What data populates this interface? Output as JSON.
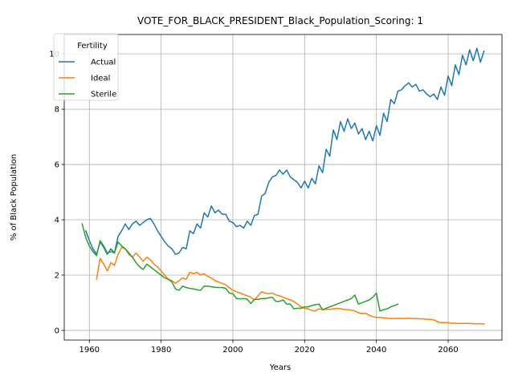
{
  "chart_data": {
    "type": "line",
    "title": "VOTE_FOR_BLACK_PRESIDENT_Black_Population_Scoring: 1",
    "xlabel": "Years",
    "ylabel": "% of Black Population",
    "xlim": [
      1953,
      2075
    ],
    "ylim": [
      -0.35,
      10.7
    ],
    "x_ticks": [
      1960,
      1980,
      2000,
      2020,
      2040,
      2060
    ],
    "y_ticks": [
      0,
      2,
      4,
      6,
      8,
      10
    ],
    "grid": true,
    "legend": {
      "title": "Fertility",
      "placement": "top-left"
    },
    "series": [
      {
        "name": "Actual",
        "color": "#1f77b4",
        "x": [
          1958,
          1959,
          1960,
          1961,
          1962,
          1963,
          1964,
          1965,
          1966,
          1967,
          1968,
          1969,
          1970,
          1971,
          1972,
          1973,
          1974,
          1975,
          1976,
          1977,
          1978,
          1979,
          1980,
          1981,
          1982,
          1983,
          1984,
          1985,
          1986,
          1987,
          1988,
          1989,
          1990,
          1991,
          1992,
          1993,
          1994,
          1995,
          1996,
          1997,
          1998,
          1999,
          2000,
          2001,
          2002,
          2003,
          2004,
          2005,
          2006,
          2007,
          2008,
          2009,
          2010,
          2011,
          2012,
          2013,
          2014,
          2015,
          2016,
          2017,
          2018,
          2019,
          2020,
          2021,
          2022,
          2023,
          2024,
          2025,
          2026,
          2027,
          2028,
          2029,
          2030,
          2031,
          2032,
          2033,
          2034,
          2035,
          2036,
          2037,
          2038,
          2039,
          2040,
          2041,
          2042,
          2043,
          2044,
          2045,
          2046,
          2047,
          2048,
          2049,
          2050,
          2051,
          2052,
          2053,
          2054,
          2055,
          2056,
          2057,
          2058,
          2059,
          2060,
          2061,
          2062,
          2063,
          2064,
          2065,
          2066,
          2067,
          2068,
          2069,
          2070
        ],
        "y": [
          null,
          3.6,
          3.25,
          2.95,
          2.75,
          3.2,
          3.0,
          2.75,
          2.95,
          2.8,
          3.4,
          3.6,
          3.85,
          3.65,
          3.85,
          3.95,
          3.8,
          3.9,
          4.0,
          4.05,
          3.85,
          3.6,
          3.4,
          3.2,
          3.05,
          2.95,
          2.75,
          2.8,
          3.0,
          2.95,
          3.6,
          3.5,
          3.85,
          3.7,
          4.25,
          4.1,
          4.5,
          4.25,
          4.35,
          4.2,
          4.2,
          3.95,
          3.9,
          3.75,
          3.8,
          3.7,
          3.95,
          3.8,
          4.15,
          4.2,
          4.85,
          4.95,
          5.35,
          5.55,
          5.6,
          5.8,
          5.65,
          5.8,
          5.55,
          5.45,
          5.35,
          5.15,
          5.4,
          5.15,
          5.5,
          5.3,
          5.95,
          5.7,
          6.55,
          6.3,
          7.25,
          6.9,
          7.55,
          7.2,
          7.65,
          7.3,
          7.5,
          7.1,
          7.3,
          6.9,
          7.2,
          6.85,
          7.4,
          7.05,
          7.85,
          7.55,
          8.35,
          8.2,
          8.65,
          8.7,
          8.85,
          8.95,
          8.8,
          8.9,
          8.65,
          8.7,
          8.55,
          8.45,
          8.55,
          8.35,
          8.8,
          8.5,
          9.2,
          8.85,
          9.6,
          9.25,
          9.95,
          9.6,
          10.15,
          9.75,
          10.2,
          9.7,
          10.1
        ]
      },
      {
        "name": "Ideal",
        "color": "#ff7f0e",
        "x": [
          1962,
          1963,
          1964,
          1965,
          1966,
          1967,
          1968,
          1969,
          1970,
          1971,
          1972,
          1973,
          1974,
          1975,
          1976,
          1977,
          1978,
          1979,
          1980,
          1981,
          1982,
          1983,
          1984,
          1985,
          1986,
          1987,
          1988,
          1989,
          1990,
          1991,
          1992,
          1993,
          1994,
          1995,
          1996,
          1997,
          1998,
          1999,
          2000,
          2001,
          2002,
          2003,
          2004,
          2005,
          2006,
          2007,
          2008,
          2009,
          2010,
          2011,
          2012,
          2013,
          2014,
          2015,
          2016,
          2017,
          2018,
          2019,
          2020,
          2021,
          2022,
          2023,
          2024,
          2025,
          2026,
          2027,
          2028,
          2029,
          2030,
          2031,
          2032,
          2033,
          2034,
          2035,
          2036,
          2037,
          2038,
          2039,
          2040,
          2041,
          2042,
          2043,
          2044,
          2045,
          2046,
          2047,
          2048,
          2049,
          2050,
          2051,
          2052,
          2053,
          2054,
          2055,
          2056,
          2057,
          2058,
          2059,
          2060,
          2061,
          2062,
          2063,
          2064,
          2065,
          2066,
          2067,
          2068,
          2069,
          2070
        ],
        "y": [
          1.85,
          2.6,
          2.4,
          2.15,
          2.45,
          2.35,
          2.75,
          3.0,
          2.95,
          2.75,
          2.65,
          2.8,
          2.65,
          2.5,
          2.65,
          2.55,
          2.4,
          2.3,
          2.15,
          2.0,
          1.85,
          1.8,
          1.7,
          1.8,
          1.9,
          1.85,
          2.1,
          2.05,
          2.1,
          2.0,
          2.05,
          1.95,
          1.9,
          1.8,
          1.75,
          1.7,
          1.65,
          1.55,
          1.45,
          1.4,
          1.35,
          1.3,
          1.25,
          1.2,
          1.1,
          1.25,
          1.4,
          1.35,
          1.33,
          1.35,
          1.28,
          1.25,
          1.2,
          1.15,
          1.1,
          1.05,
          0.95,
          0.85,
          0.8,
          0.78,
          0.72,
          0.7,
          0.78,
          0.75,
          0.76,
          0.76,
          0.78,
          0.8,
          0.78,
          0.76,
          0.75,
          0.73,
          0.7,
          0.64,
          0.6,
          0.62,
          0.55,
          0.5,
          0.47,
          0.47,
          0.46,
          0.44,
          0.43,
          0.43,
          0.44,
          0.43,
          0.43,
          0.44,
          0.43,
          0.43,
          0.42,
          0.42,
          0.4,
          0.4,
          0.38,
          0.32,
          0.28,
          0.28,
          0.28,
          0.26,
          0.26,
          0.25,
          0.25,
          0.25,
          0.25,
          0.24,
          0.24,
          0.24,
          0.23
        ]
      },
      {
        "name": "Sterile",
        "color": "#2ca02c",
        "x": [
          1958,
          1959,
          1960,
          1961,
          1962,
          1963,
          1964,
          1965,
          1966,
          1967,
          1968,
          1969,
          1970,
          1971,
          1972,
          1973,
          1974,
          1975,
          1976,
          1977,
          1978,
          1979,
          1980,
          1981,
          1982,
          1983,
          1984,
          1985,
          1986,
          1987,
          1988,
          1989,
          1990,
          1991,
          1992,
          1993,
          1994,
          1995,
          1996,
          1997,
          1998,
          1999,
          2000,
          2001,
          2002,
          2003,
          2004,
          2005,
          2006,
          2007,
          2008,
          2009,
          2010,
          2011,
          2012,
          2013,
          2014,
          2015,
          2016,
          2017,
          2018,
          2019,
          2020,
          2021,
          2022,
          2023,
          2024,
          2025,
          2026,
          2027,
          2028,
          2029,
          2030,
          2031,
          2032,
          2033,
          2034,
          2035,
          2036,
          2037,
          2038,
          2039,
          2040,
          2041,
          2042,
          2043,
          2044,
          2045,
          2046
        ],
        "y": [
          3.85,
          3.35,
          3.05,
          2.85,
          2.7,
          3.25,
          3.05,
          2.8,
          2.85,
          2.8,
          3.2,
          3.05,
          2.95,
          2.8,
          2.65,
          2.45,
          2.3,
          2.2,
          2.4,
          2.3,
          2.2,
          2.1,
          2.0,
          1.9,
          1.85,
          1.75,
          1.5,
          1.45,
          1.6,
          1.55,
          1.52,
          1.5,
          1.47,
          1.45,
          1.6,
          1.6,
          1.58,
          1.56,
          1.55,
          1.55,
          1.52,
          1.35,
          1.33,
          1.15,
          1.14,
          1.15,
          1.13,
          0.97,
          1.12,
          1.12,
          1.15,
          1.15,
          1.18,
          1.2,
          1.05,
          1.05,
          1.1,
          0.95,
          0.95,
          0.78,
          0.8,
          0.8,
          0.85,
          0.85,
          0.9,
          0.93,
          0.95,
          0.75,
          0.8,
          0.85,
          0.9,
          0.95,
          1.0,
          1.05,
          1.1,
          1.15,
          1.28,
          0.95,
          1.0,
          1.05,
          1.1,
          1.2,
          1.35,
          0.7,
          0.75,
          0.78,
          0.85,
          0.9,
          0.95
        ]
      }
    ]
  }
}
